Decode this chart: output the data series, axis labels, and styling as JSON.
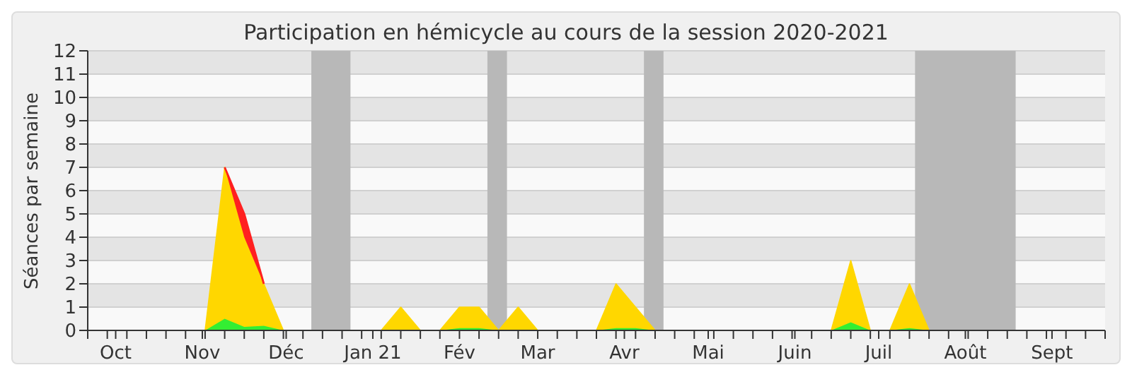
{
  "chart_data": {
    "type": "area",
    "title": "Participation en hémicycle au cours de la session 2020-2021",
    "ylabel": "Séances par semaine",
    "x": [
      "2020-09-21",
      "2020-09-28",
      "2020-10-05",
      "2020-10-12",
      "2020-10-19",
      "2020-10-26",
      "2020-11-02",
      "2020-11-09",
      "2020-11-16",
      "2020-11-23",
      "2020-11-30",
      "2020-12-07",
      "2020-12-14",
      "2020-12-21",
      "2020-12-28",
      "2021-01-04",
      "2021-01-11",
      "2021-01-18",
      "2021-01-25",
      "2021-02-01",
      "2021-02-08",
      "2021-02-15",
      "2021-02-22",
      "2021-03-01",
      "2021-03-08",
      "2021-03-15",
      "2021-03-22",
      "2021-03-29",
      "2021-04-05",
      "2021-04-12",
      "2021-04-19",
      "2021-04-26",
      "2021-05-03",
      "2021-05-10",
      "2021-05-17",
      "2021-05-24",
      "2021-05-31",
      "2021-06-07",
      "2021-06-14",
      "2021-06-21",
      "2021-06-28",
      "2021-07-05",
      "2021-07-12",
      "2021-07-19",
      "2021-07-26",
      "2021-08-02",
      "2021-08-09",
      "2021-08-16",
      "2021-08-23",
      "2021-08-30",
      "2021-09-06",
      "2021-09-13",
      "2021-09-20"
    ],
    "series": [
      {
        "color": "#33ee33",
        "values": [
          0,
          0,
          0,
          0,
          0,
          0,
          0,
          0.5,
          0.15,
          0.2,
          0,
          0,
          0,
          0,
          0,
          0,
          0,
          0,
          0,
          0.1,
          0.1,
          0,
          0,
          0,
          0,
          0,
          0,
          0.1,
          0.1,
          0,
          0,
          0,
          0,
          0,
          0,
          0,
          0,
          0,
          0,
          0.35,
          0,
          0,
          0.1,
          0,
          0,
          0,
          0,
          0,
          0,
          0,
          0,
          0,
          0
        ]
      },
      {
        "color": "#ffd700",
        "values": [
          0,
          0,
          0,
          0,
          0,
          0,
          0,
          6.5,
          3.85,
          1.8,
          0,
          0,
          0,
          0,
          0,
          0,
          1,
          0,
          0,
          0.9,
          0.9,
          0,
          1,
          0,
          0,
          0,
          0,
          1.9,
          0.9,
          0,
          0,
          0,
          0,
          0,
          0,
          0,
          0,
          0,
          0,
          2.65,
          0,
          0,
          1.9,
          0,
          0,
          0,
          0,
          0,
          0,
          0,
          0,
          0,
          0
        ]
      },
      {
        "color": "#ff2020",
        "values": [
          null,
          null,
          null,
          null,
          null,
          null,
          null,
          0,
          1,
          0,
          null,
          null,
          null,
          null,
          null,
          null,
          null,
          null,
          null,
          null,
          null,
          null,
          null,
          null,
          null,
          null,
          null,
          null,
          null,
          null,
          null,
          null,
          null,
          null,
          null,
          null,
          null,
          null,
          null,
          null,
          null,
          null,
          null,
          null,
          null,
          null,
          null,
          null,
          null,
          null,
          null,
          null,
          null
        ]
      }
    ],
    "stacked": true,
    "xlim": [
      "2020-09-21",
      "2021-09-20"
    ],
    "xticks": [
      {
        "value": "2020-09-21",
        "label": null
      },
      {
        "value": "2020-09-28",
        "label": null
      },
      {
        "value": "2020-10-01",
        "label": "Oct"
      },
      {
        "value": "2020-10-05",
        "label": null
      },
      {
        "value": "2020-10-12",
        "label": null
      },
      {
        "value": "2020-10-19",
        "label": null
      },
      {
        "value": "2020-10-26",
        "label": null
      },
      {
        "value": "2020-11-01",
        "label": "Nov"
      },
      {
        "value": "2020-11-02",
        "label": null
      },
      {
        "value": "2020-11-09",
        "label": null
      },
      {
        "value": "2020-11-16",
        "label": null
      },
      {
        "value": "2020-11-23",
        "label": null
      },
      {
        "value": "2020-11-30",
        "label": null
      },
      {
        "value": "2020-12-01",
        "label": "Déc"
      },
      {
        "value": "2020-12-07",
        "label": null
      },
      {
        "value": "2020-12-14",
        "label": null
      },
      {
        "value": "2020-12-21",
        "label": null
      },
      {
        "value": "2020-12-28",
        "label": null
      },
      {
        "value": "2021-01-01",
        "label": "Jan 21"
      },
      {
        "value": "2021-01-04",
        "label": null
      },
      {
        "value": "2021-01-11",
        "label": null
      },
      {
        "value": "2021-01-18",
        "label": null
      },
      {
        "value": "2021-01-25",
        "label": null
      },
      {
        "value": "2021-02-01",
        "label": "Fév"
      },
      {
        "value": "2021-02-08",
        "label": null
      },
      {
        "value": "2021-02-15",
        "label": null
      },
      {
        "value": "2021-02-22",
        "label": null
      },
      {
        "value": "2021-03-01",
        "label": "Mar"
      },
      {
        "value": "2021-03-08",
        "label": null
      },
      {
        "value": "2021-03-15",
        "label": null
      },
      {
        "value": "2021-03-22",
        "label": null
      },
      {
        "value": "2021-03-29",
        "label": null
      },
      {
        "value": "2021-04-01",
        "label": "Avr"
      },
      {
        "value": "2021-04-05",
        "label": null
      },
      {
        "value": "2021-04-12",
        "label": null
      },
      {
        "value": "2021-04-19",
        "label": null
      },
      {
        "value": "2021-04-26",
        "label": null
      },
      {
        "value": "2021-05-01",
        "label": "Mai"
      },
      {
        "value": "2021-05-03",
        "label": null
      },
      {
        "value": "2021-05-10",
        "label": null
      },
      {
        "value": "2021-05-17",
        "label": null
      },
      {
        "value": "2021-05-24",
        "label": null
      },
      {
        "value": "2021-05-31",
        "label": null
      },
      {
        "value": "2021-06-01",
        "label": "Juin"
      },
      {
        "value": "2021-06-07",
        "label": null
      },
      {
        "value": "2021-06-14",
        "label": null
      },
      {
        "value": "2021-06-21",
        "label": null
      },
      {
        "value": "2021-06-28",
        "label": null
      },
      {
        "value": "2021-07-01",
        "label": "Juil"
      },
      {
        "value": "2021-07-05",
        "label": null
      },
      {
        "value": "2021-07-12",
        "label": null
      },
      {
        "value": "2021-07-19",
        "label": null
      },
      {
        "value": "2021-07-26",
        "label": null
      },
      {
        "value": "2021-08-01",
        "label": "Août"
      },
      {
        "value": "2021-08-02",
        "label": null
      },
      {
        "value": "2021-08-09",
        "label": null
      },
      {
        "value": "2021-08-16",
        "label": null
      },
      {
        "value": "2021-08-23",
        "label": null
      },
      {
        "value": "2021-08-30",
        "label": null
      },
      {
        "value": "2021-09-01",
        "label": "Sept"
      },
      {
        "value": "2021-09-06",
        "label": null
      },
      {
        "value": "2021-09-13",
        "label": null
      },
      {
        "value": "2021-09-20",
        "label": null
      }
    ],
    "ylim": [
      0,
      12
    ],
    "yticks": [
      0,
      1,
      2,
      3,
      4,
      5,
      6,
      7,
      8,
      9,
      10,
      11,
      12
    ],
    "bands": [
      {
        "axis": "x",
        "from": "2020-12-10",
        "to": "2020-12-24",
        "color": "#b8b8b8"
      },
      {
        "axis": "x",
        "from": "2021-02-11",
        "to": "2021-02-18",
        "color": "#b8b8b8"
      },
      {
        "axis": "x",
        "from": "2021-04-08",
        "to": "2021-04-15",
        "color": "#b8b8b8"
      },
      {
        "axis": "x",
        "from": "2021-07-14",
        "to": "2021-08-19",
        "color": "#b8b8b8"
      }
    ],
    "grid": "y",
    "legend": false,
    "marker": "none",
    "line_style": "solid"
  }
}
